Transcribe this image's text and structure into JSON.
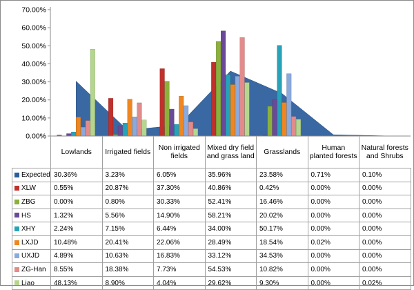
{
  "chart_data": {
    "type": "bar",
    "title": "",
    "xlabel": "",
    "ylabel": "",
    "ylim": [
      0,
      70
    ],
    "y_tick_labels": [
      "0.00%",
      "10.00%",
      "20.00%",
      "30.00%",
      "40.00%",
      "50.00%",
      "60.00%",
      "70.00%"
    ],
    "grid": false,
    "legend": "embedded in data table below the plot",
    "categories": [
      "Lowlands",
      "Irrigated fields",
      "Non irrigated fields",
      "Mixed dry field and grass land",
      "Grasslands",
      "Human planted forests",
      "Natural forests and Shrubs"
    ],
    "series": [
      {
        "name": "Expected",
        "chart_type": "area",
        "color": "#2a5d9b",
        "values": [
          30.36,
          3.23,
          6.05,
          35.96,
          23.58,
          0.71,
          0.1
        ],
        "labels": [
          "30.36%",
          "3.23%",
          "6.05%",
          "35.96%",
          "23.58%",
          "0.71%",
          "0.10%"
        ]
      },
      {
        "name": "XLW",
        "color": "#c0302c",
        "values": [
          0.55,
          20.87,
          37.3,
          40.86,
          0.42,
          0.0,
          0.0
        ],
        "labels": [
          "0.55%",
          "20.87%",
          "37.30%",
          "40.86%",
          "0.42%",
          "0.00%",
          "0.00%"
        ]
      },
      {
        "name": "ZBG",
        "color": "#8cb03c",
        "values": [
          0.0,
          0.8,
          30.33,
          52.41,
          16.46,
          0.0,
          0.0
        ],
        "labels": [
          "0.00%",
          "0.80%",
          "30.33%",
          "52.41%",
          "16.46%",
          "0.00%",
          "0.00%"
        ]
      },
      {
        "name": "HS",
        "color": "#6a4a98",
        "values": [
          1.32,
          5.56,
          14.9,
          58.21,
          20.02,
          0.0,
          0.0
        ],
        "labels": [
          "1.32%",
          "5.56%",
          "14.90%",
          "58.21%",
          "20.02%",
          "0.00%",
          "0.00%"
        ]
      },
      {
        "name": "XHY",
        "color": "#27a3b9",
        "values": [
          2.24,
          7.15,
          6.44,
          34.0,
          50.17,
          0.0,
          0.0
        ],
        "labels": [
          "2.24%",
          "7.15%",
          "6.44%",
          "34.00%",
          "50.17%",
          "0.00%",
          "0.00%"
        ]
      },
      {
        "name": "LXJD",
        "color": "#f0861f",
        "values": [
          10.48,
          20.41,
          22.06,
          28.49,
          18.54,
          0.02,
          0.0
        ],
        "labels": [
          "10.48%",
          "20.41%",
          "22.06%",
          "28.49%",
          "18.54%",
          "0.02%",
          "0.00%"
        ]
      },
      {
        "name": "UXJD",
        "color": "#8aa9dc",
        "values": [
          4.89,
          10.63,
          16.83,
          33.12,
          34.53,
          0.0,
          0.0
        ],
        "labels": [
          "4.89%",
          "10.63%",
          "16.83%",
          "33.12%",
          "34.53%",
          "0.00%",
          "0.00%"
        ]
      },
      {
        "name": "ZG-Han",
        "color": "#e38b8b",
        "values": [
          8.55,
          18.38,
          7.73,
          54.53,
          10.82,
          0.0,
          0.0
        ],
        "labels": [
          "8.55%",
          "18.38%",
          "7.73%",
          "54.53%",
          "10.82%",
          "0.00%",
          "0.00%"
        ]
      },
      {
        "name": "Liao",
        "color": "#b5d68e",
        "values": [
          48.13,
          8.9,
          4.04,
          29.62,
          9.3,
          0.0,
          0.02
        ],
        "labels": [
          "48.13%",
          "8.90%",
          "4.04%",
          "29.62%",
          "9.30%",
          "0.00%",
          "0.02%"
        ]
      }
    ]
  }
}
